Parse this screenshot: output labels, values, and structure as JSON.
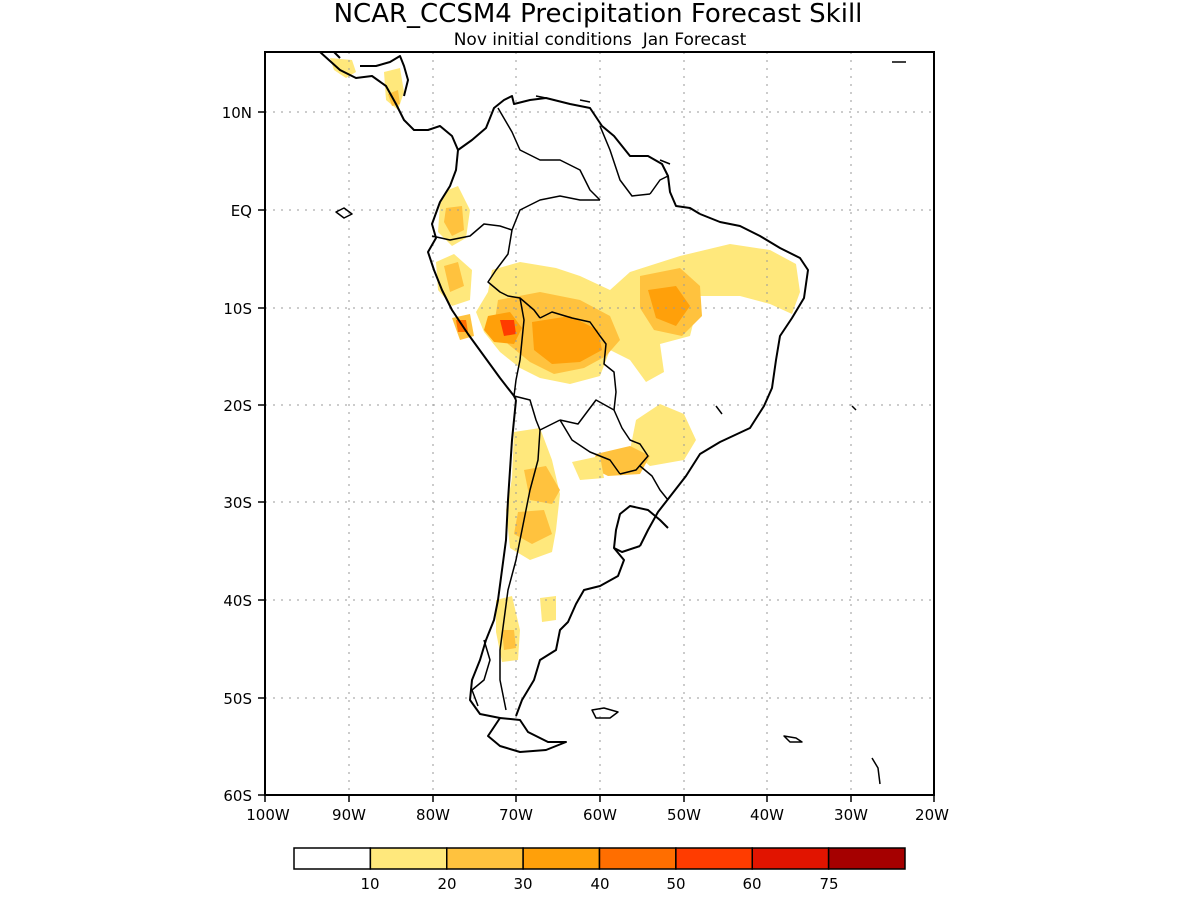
{
  "title": "NCAR_CCSM4 Precipitation Forecast Skill",
  "subtitle": "Nov initial conditions  Jan Forecast",
  "lat_ticks": [
    "10N",
    "EQ",
    "10S",
    "20S",
    "30S",
    "40S",
    "50S",
    "60S"
  ],
  "lon_ticks": [
    "100W",
    "90W",
    "80W",
    "70W",
    "60W",
    "50W",
    "40W",
    "30W",
    "20W"
  ],
  "colorbar": {
    "labels": [
      "10",
      "20",
      "30",
      "40",
      "50",
      "60",
      "75"
    ],
    "colors": [
      "#ffffff",
      "#ffe87c",
      "#ffc23e",
      "#ffa00a",
      "#ff6e00",
      "#ff3c00",
      "#e11400",
      "#a50000"
    ]
  },
  "map": {
    "lon_range": [
      -100,
      -20
    ],
    "lat_range": [
      -60,
      15
    ],
    "grid": true,
    "coastline_color": "#000000"
  }
}
